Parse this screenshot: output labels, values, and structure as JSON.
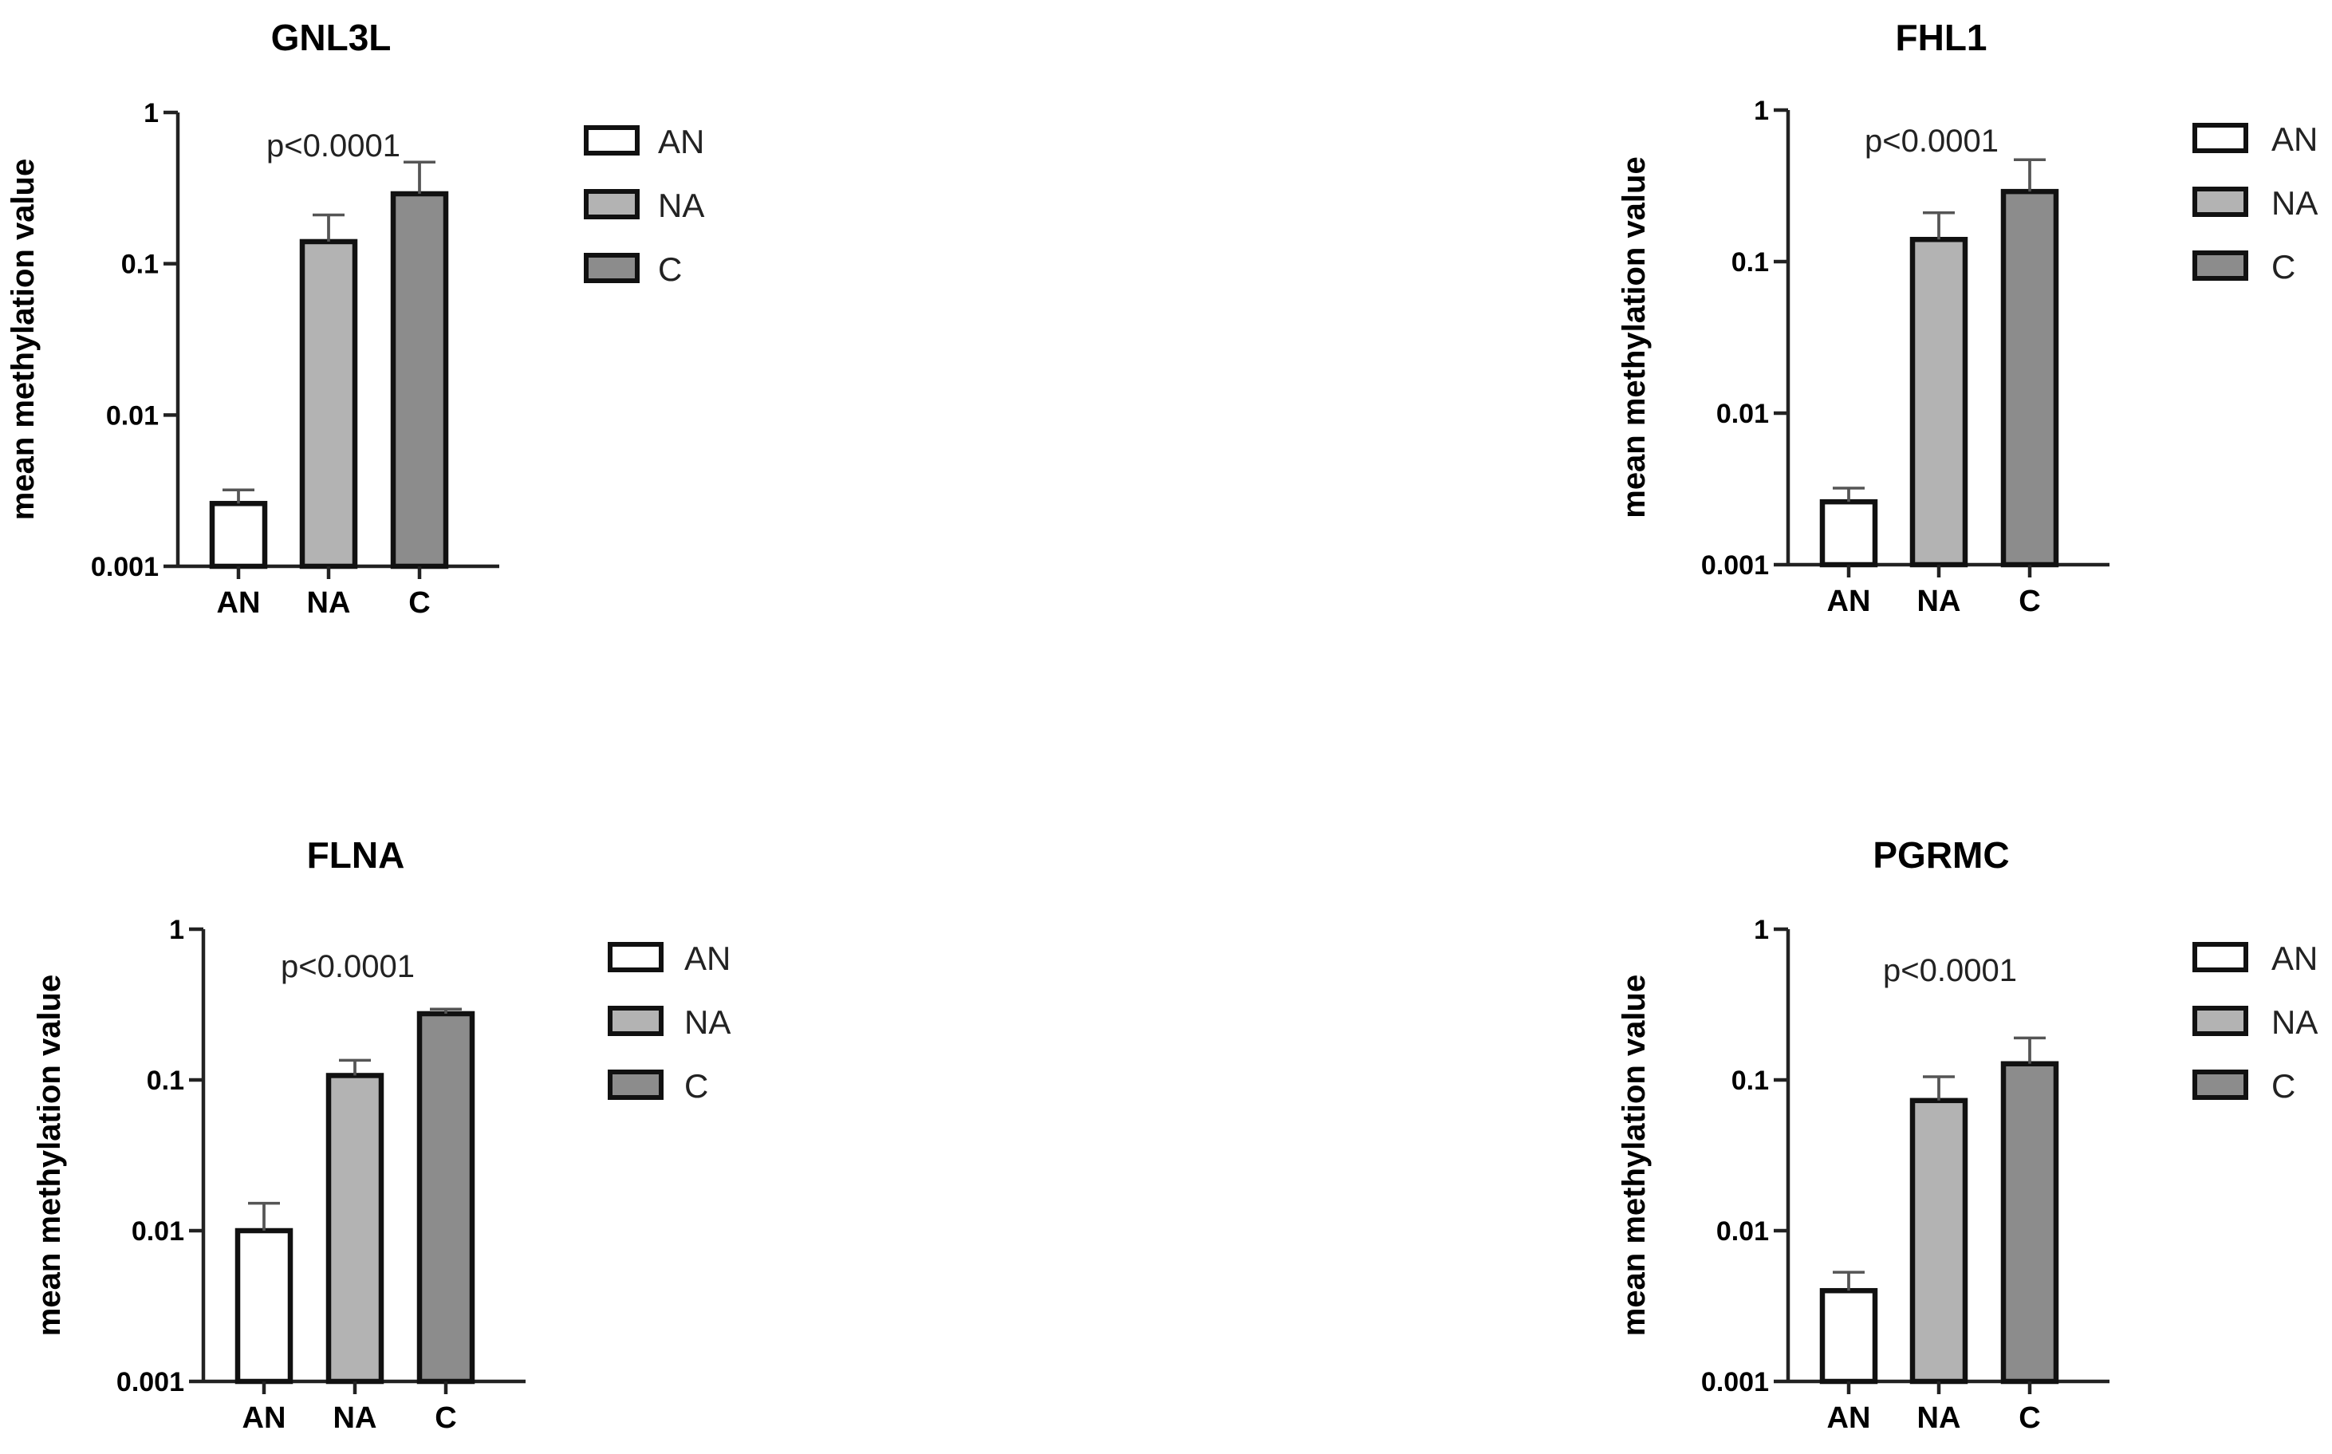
{
  "chart_data": [
    {
      "type": "bar",
      "title": "GNL3L",
      "ylabel": "mean methylation value",
      "xlabel": "",
      "yscale": "log",
      "ylim": [
        0.001,
        1
      ],
      "yticks": [
        "1",
        "0.1",
        "0.01",
        "0.001"
      ],
      "categories": [
        "AN",
        "NA",
        "C"
      ],
      "values": [
        0.0026,
        0.14,
        0.29
      ],
      "error_low": [
        0.0019,
        0.11,
        0.24
      ],
      "error_high": [
        0.0032,
        0.21,
        0.47
      ],
      "annotation": "p<0.0001",
      "legend": {
        "position": "right",
        "entries": [
          "AN",
          "NA",
          "C"
        ]
      }
    },
    {
      "type": "bar",
      "title": "FHL1",
      "ylabel": "mean methylation value",
      "xlabel": "",
      "yscale": "log",
      "ylim": [
        0.001,
        1
      ],
      "yticks": [
        "1",
        "0.1",
        "0.01",
        "0.001"
      ],
      "categories": [
        "AN",
        "NA",
        "C"
      ],
      "values": [
        0.0026,
        0.14,
        0.29
      ],
      "error_low": [
        0.0019,
        0.11,
        0.24
      ],
      "error_high": [
        0.0032,
        0.21,
        0.47
      ],
      "annotation": "p<0.0001",
      "legend": {
        "position": "right",
        "entries": [
          "AN",
          "NA",
          "C"
        ]
      }
    },
    {
      "type": "bar",
      "title": "FLNA",
      "ylabel": "mean methylation value",
      "xlabel": "",
      "yscale": "log",
      "ylim": [
        0.001,
        1
      ],
      "yticks": [
        "1",
        "0.1",
        "0.01",
        "0.001"
      ],
      "categories": [
        "AN",
        "NA",
        "C"
      ],
      "values": [
        0.01,
        0.107,
        0.275
      ],
      "error_low": [
        0.0078,
        0.09,
        0.26
      ],
      "error_high": [
        0.0152,
        0.135,
        0.295
      ],
      "annotation": "p<0.0001",
      "legend": {
        "position": "right",
        "entries": [
          "AN",
          "NA",
          "C"
        ]
      }
    },
    {
      "type": "bar",
      "title": "PGRMC",
      "ylabel": "mean methylation value",
      "xlabel": "",
      "yscale": "log",
      "ylim": [
        0.001,
        1
      ],
      "yticks": [
        "1",
        "0.1",
        "0.01",
        "0.001"
      ],
      "categories": [
        "AN",
        "NA",
        "C"
      ],
      "values": [
        0.004,
        0.073,
        0.128
      ],
      "error_low": [
        0.0024,
        0.043,
        0.1
      ],
      "error_high": [
        0.0053,
        0.105,
        0.19
      ],
      "annotation": "p<0.0001",
      "legend": {
        "position": "right",
        "entries": [
          "AN",
          "NA",
          "C"
        ]
      }
    }
  ],
  "colors": {
    "AN": "#ffffff",
    "NA": "#b3b3b3",
    "C": "#8c8c8c",
    "outline": "#111111",
    "error_bar": "#555555"
  }
}
